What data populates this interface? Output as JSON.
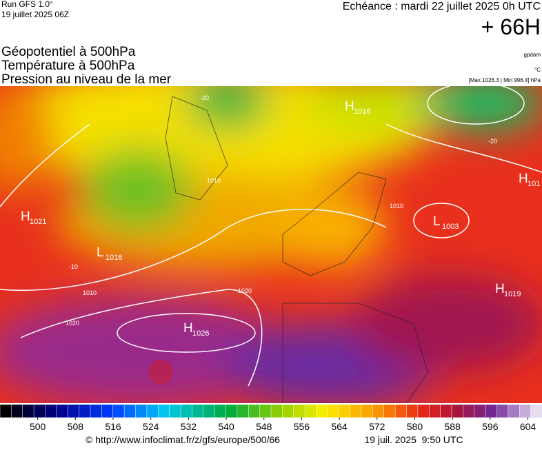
{
  "header": {
    "run": "Run GFS 1.0°",
    "date": "19 juillet 2025 06Z",
    "echeance": "Echéance : mardi 22 juillet 2025 0h UTC",
    "lead": "+ 66H"
  },
  "titles": [
    "Géopotentiel à 500hPa",
    "Température à 500hPa",
    "Pression au niveau de la mer"
  ],
  "units": {
    "geopotential": "gpdam",
    "temperature": "°C",
    "extremes": "[Max 1026.3 | Min 996.4] hPa"
  },
  "centers": [
    {
      "symbol": "H",
      "value": "1021"
    },
    {
      "symbol": "L",
      "value": "1003"
    },
    {
      "symbol": "H",
      "value": "1026"
    },
    {
      "symbol": "H",
      "value": "1019"
    },
    {
      "symbol": "H",
      "value": "101"
    },
    {
      "symbol": "H",
      "value": "1016"
    },
    {
      "symbol": "L",
      "value": "1016"
    }
  ],
  "contour_labels": [
    "1010",
    "1010",
    "1020",
    "1020",
    "1010",
    "-20",
    "-20",
    "-10"
  ],
  "colorbar": {
    "lim": [
      492,
      607
    ],
    "ticks": [
      500,
      508,
      516,
      524,
      532,
      540,
      548,
      556,
      564,
      572,
      580,
      588,
      596,
      604
    ]
  },
  "footer": {
    "source": "© http://www.infoclimat.fr/z/gfs/europe/500/66",
    "timestamp": "19 juil. 2025  9:50 UTC"
  }
}
